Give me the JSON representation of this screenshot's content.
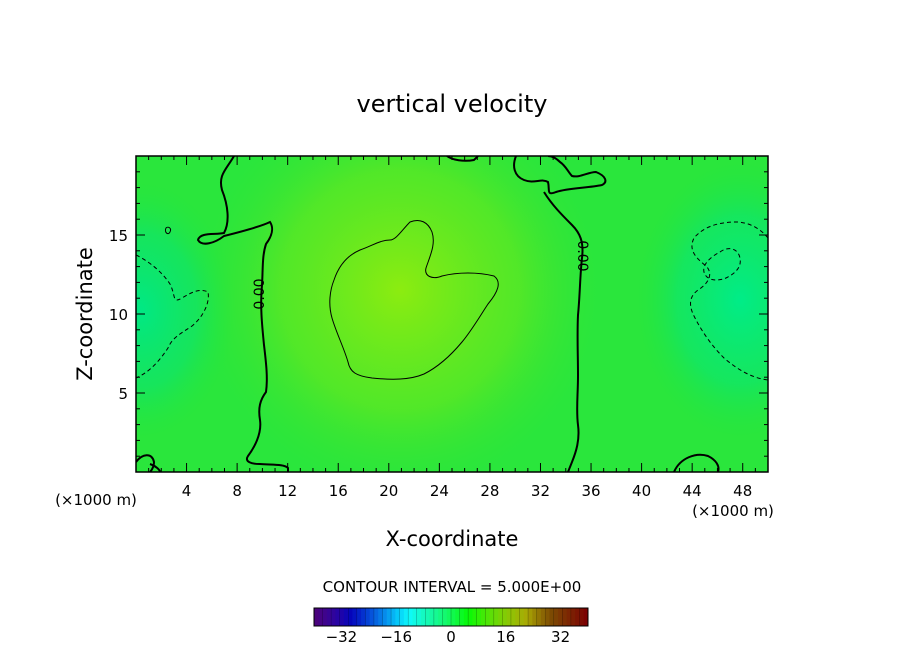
{
  "chart_data": {
    "type": "heatmap",
    "title": "vertical velocity",
    "xlabel": "X-coordinate",
    "ylabel": "Z-coordinate",
    "x_unit_left": "(×1000 m)",
    "x_unit_right": "(×1000 m)",
    "xlim": [
      0,
      50
    ],
    "ylim": [
      0,
      20
    ],
    "x_ticks": [
      4,
      8,
      12,
      16,
      20,
      24,
      28,
      32,
      36,
      40,
      44,
      48
    ],
    "x_tick_labels": [
      "4",
      "8",
      "12",
      "16",
      "20",
      "24",
      "28",
      "32",
      "36",
      "40",
      "44",
      "48"
    ],
    "y_ticks": [
      5,
      10,
      15
    ],
    "y_tick_labels": [
      "5",
      "10",
      "15"
    ],
    "contour_interval_text": "CONTOUR INTERVAL = 5.000E+00",
    "contour_labels": [
      {
        "text": "0.00",
        "x": 9.8,
        "z": 11.2,
        "rotation": -90
      },
      {
        "text": "0.00",
        "x": 35.0,
        "z": 13.5,
        "rotation": 90
      }
    ],
    "colorbar": {
      "range": [
        -40,
        40
      ],
      "ticks": [
        -32,
        -16,
        0,
        16,
        32
      ],
      "tick_labels": [
        "−32",
        "−16",
        "0",
        "16",
        "32"
      ]
    },
    "colors": {
      "background_field": "#27e53a",
      "positive_core": "#86ec14",
      "negative_flank": "#00e67f",
      "contour_line": "#000000"
    },
    "field_features": [
      {
        "kind": "updraft_core",
        "x": 20.5,
        "z": 12.0,
        "value": 5
      },
      {
        "kind": "downdraft_flank",
        "x": 0.5,
        "z": 10.0,
        "value": -4
      },
      {
        "kind": "downdraft_flank",
        "x": 48.0,
        "z": 11.0,
        "value": -5
      }
    ]
  }
}
